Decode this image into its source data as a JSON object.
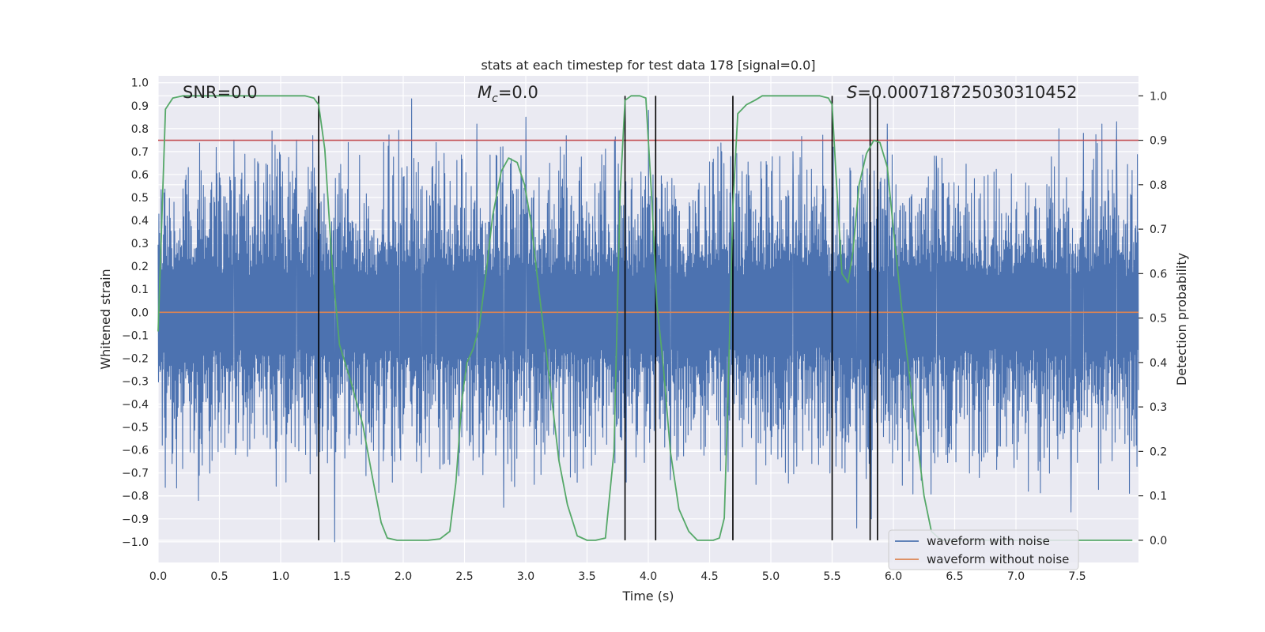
{
  "chart_data": {
    "type": "line",
    "title": "stats at each timestep for test data 178 [signal=0.0]",
    "xlabel": "Time (s)",
    "ylabel_left": "Whitened strain",
    "ylabel_right": "Detection probability",
    "xlim": [
      0.0,
      8.0
    ],
    "ylim_left": [
      -1.09,
      1.03
    ],
    "ylim_right": [
      -0.05,
      1.045
    ],
    "x_ticks": [
      "0.0",
      "0.5",
      "1.0",
      "1.5",
      "2.0",
      "2.5",
      "3.0",
      "3.5",
      "4.0",
      "4.5",
      "5.0",
      "5.5",
      "6.0",
      "6.5",
      "7.0",
      "7.5"
    ],
    "y_ticks_left": [
      "1.0",
      "0.9",
      "0.8",
      "0.7",
      "0.6",
      "0.5",
      "0.4",
      "0.3",
      "0.2",
      "0.1",
      "0.0",
      "−0.1",
      "−0.2",
      "−0.3",
      "−0.4",
      "−0.5",
      "−0.6",
      "−0.7",
      "−0.8",
      "−0.9",
      "−1.0"
    ],
    "y_ticks_right": [
      "1.0",
      "0.9",
      "0.8",
      "0.7",
      "0.6",
      "0.5",
      "0.4",
      "0.3",
      "0.2",
      "0.1",
      "0.0"
    ],
    "annotations": {
      "snr": "SNR=0.0",
      "mc_symbol": "M",
      "mc_sub": "c",
      "mc_value": "=0.0",
      "s_symbol": "S",
      "s_value": "=0.000718725030310452"
    },
    "threshold": 0.9,
    "threshold_color": "#c44e52",
    "event_lines_x": [
      1.31,
      3.81,
      4.06,
      4.69,
      5.5,
      5.81,
      5.87
    ],
    "event_line_range": [
      0.0,
      1.0
    ],
    "series": [
      {
        "name": "waveform with noise",
        "color": "#4c72b0",
        "axis": "left",
        "typical_envelope": 0.45,
        "peaks": [
          [
            0.05,
            0.52
          ],
          [
            0.33,
            -0.82
          ],
          [
            0.62,
            0.75
          ],
          [
            0.63,
            -0.62
          ],
          [
            1.13,
            -0.82
          ],
          [
            1.13,
            0.75
          ],
          [
            1.44,
            -1.0
          ],
          [
            1.55,
            0.74
          ],
          [
            1.84,
            0.74
          ],
          [
            1.97,
            -0.38
          ],
          [
            2.07,
            0.93
          ],
          [
            2.15,
            -0.7
          ],
          [
            2.27,
            0.74
          ],
          [
            2.6,
            0.82
          ],
          [
            2.82,
            -0.85
          ],
          [
            3.0,
            0.85
          ],
          [
            3.07,
            -0.75
          ],
          [
            3.28,
            0.72
          ],
          [
            3.4,
            -0.7
          ],
          [
            3.82,
            -0.74
          ],
          [
            4.0,
            0.88
          ],
          [
            4.18,
            -0.73
          ],
          [
            4.6,
            0.7
          ],
          [
            4.88,
            -0.75
          ],
          [
            5.18,
            0.7
          ],
          [
            5.7,
            -0.94
          ],
          [
            5.82,
            -0.9
          ],
          [
            5.95,
            0.82
          ],
          [
            6.35,
            0.68
          ],
          [
            6.7,
            -0.72
          ],
          [
            7.1,
            -0.78
          ],
          [
            7.35,
            0.8
          ],
          [
            7.45,
            -0.87
          ],
          [
            7.55,
            0.78
          ],
          [
            7.7,
            0.82
          ],
          [
            7.82,
            0.83
          ]
        ]
      },
      {
        "name": "waveform without noise",
        "color": "#dd8452",
        "axis": "left",
        "x": [
          0.0,
          8.0
        ],
        "y": [
          0.0,
          0.0
        ]
      },
      {
        "name": "",
        "color": "#55a868",
        "axis": "right",
        "x": [
          0.0,
          0.06,
          0.12,
          0.2,
          0.3,
          0.5,
          0.8,
          1.0,
          1.2,
          1.27,
          1.31,
          1.36,
          1.42,
          1.48,
          1.57,
          1.67,
          1.75,
          1.82,
          1.87,
          1.95,
          2.05,
          2.2,
          2.3,
          2.38,
          2.43,
          2.48,
          2.52,
          2.57,
          2.62,
          2.68,
          2.73,
          2.8,
          2.86,
          2.93,
          2.99,
          3.04,
          3.1,
          3.16,
          3.22,
          3.27,
          3.34,
          3.42,
          3.5,
          3.57,
          3.65,
          3.72,
          3.77,
          3.81,
          3.86,
          3.9,
          3.93,
          3.98,
          4.03,
          4.07,
          4.12,
          4.18,
          4.25,
          4.33,
          4.4,
          4.47,
          4.53,
          4.58,
          4.62,
          4.65,
          4.69,
          4.73,
          4.8,
          4.87,
          4.93,
          5.0,
          5.2,
          5.4,
          5.47,
          5.5,
          5.53,
          5.58,
          5.63,
          5.67,
          5.72,
          5.78,
          5.84,
          5.89,
          5.95,
          6.0,
          6.08,
          6.17,
          6.25,
          6.31,
          6.39,
          6.45,
          6.6,
          7.0,
          7.5,
          7.95
        ],
        "y": [
          0.47,
          0.97,
          0.995,
          1.0,
          1.0,
          1.0,
          1.0,
          1.0,
          1.0,
          0.995,
          0.98,
          0.88,
          0.62,
          0.44,
          0.36,
          0.26,
          0.14,
          0.04,
          0.005,
          0.0,
          0.0,
          0.0,
          0.003,
          0.02,
          0.13,
          0.32,
          0.4,
          0.43,
          0.48,
          0.61,
          0.73,
          0.83,
          0.86,
          0.85,
          0.8,
          0.72,
          0.58,
          0.44,
          0.3,
          0.18,
          0.08,
          0.01,
          0.0,
          0.0,
          0.005,
          0.2,
          0.78,
          0.99,
          1.0,
          1.0,
          1.0,
          0.995,
          0.76,
          0.53,
          0.4,
          0.2,
          0.07,
          0.02,
          0.0,
          0.0,
          0.0,
          0.005,
          0.05,
          0.32,
          0.75,
          0.96,
          0.98,
          0.99,
          1.0,
          1.0,
          1.0,
          1.0,
          0.995,
          0.98,
          0.83,
          0.6,
          0.58,
          0.65,
          0.8,
          0.87,
          0.9,
          0.895,
          0.84,
          0.7,
          0.49,
          0.28,
          0.1,
          0.02,
          0.0,
          0.0,
          0.0,
          0.0,
          0.0,
          0.0
        ]
      }
    ],
    "legend": {
      "placement": "lower-right",
      "entries": [
        "waveform with noise",
        "waveform without noise"
      ]
    },
    "grid": true
  }
}
